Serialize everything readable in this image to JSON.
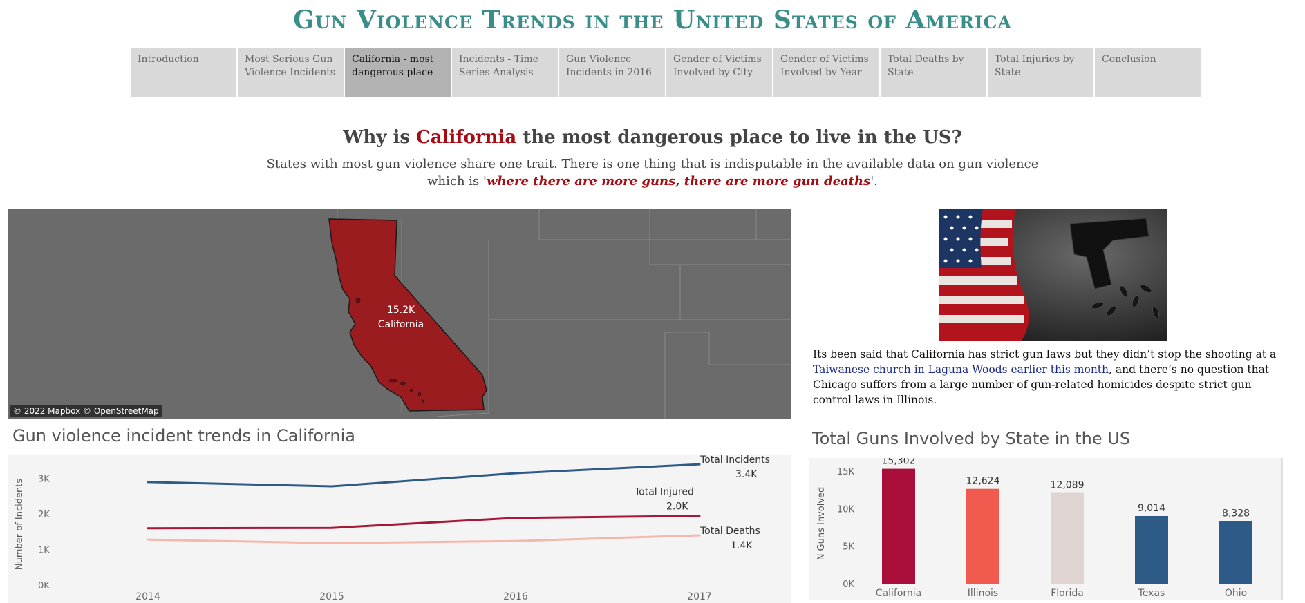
{
  "header": {
    "title": "Gun Violence Trends in the United States of America"
  },
  "tabs": [
    {
      "label": "Introduction",
      "active": false
    },
    {
      "label": "Most Serious Gun Violence Incidents",
      "active": false
    },
    {
      "label": "California - most dangerous place",
      "active": true
    },
    {
      "label": "Incidents - Time Series Analysis",
      "active": false
    },
    {
      "label": "Gun Violence Incidents in 2016",
      "active": false
    },
    {
      "label": "Gender of Victims Involved by City",
      "active": false
    },
    {
      "label": "Gender of Victims Involved by Year",
      "active": false
    },
    {
      "label": "Total Deaths by State",
      "active": false
    },
    {
      "label": "Total Injuries by State",
      "active": false
    },
    {
      "label": "Conclusion",
      "active": false
    }
  ],
  "intro": {
    "question_pre": "Why is ",
    "question_highlight": "California",
    "question_post": " the most dangerous place to live in the US?",
    "subtext_pre": "States with most gun violence share one trait. There is one thing that is indisputable in the available data on gun violence which is '",
    "subtext_quote": "where there are more guns, there are more gun deaths",
    "subtext_post": "'."
  },
  "map": {
    "value_label": "15.2K",
    "state_label": "California",
    "attribution": "© 2022 Mapbox © OpenStreetMap",
    "highlight_color": "#9b1c1f"
  },
  "article": {
    "text_1": "Its been said that California has strict gun laws but they didn’t stop the shooting at a ",
    "link_text": "Taiwanese church in Laguna Woods earlier this month",
    "text_2": ", and there’s no question that Chicago suffers from a large number of gun-related homicides despite strict gun control laws in Illinois."
  },
  "line_chart": {
    "title": "Gun violence incident trends in California"
  },
  "bar_chart": {
    "title": "Total Guns Involved by State in the US"
  },
  "chart_data": [
    {
      "type": "line",
      "title": "Gun violence incident trends in California",
      "ylabel": "Number of Incidents",
      "xlabel": "",
      "x": [
        "2014",
        "2015",
        "2016",
        "2017"
      ],
      "ylim": [
        0,
        3500
      ],
      "y_ticks": [
        "0K",
        "1K",
        "2K",
        "3K"
      ],
      "grid": false,
      "series": [
        {
          "name": "Total Incidents",
          "end_label": "3.4K",
          "values": [
            2900,
            2780,
            3150,
            3400
          ],
          "color": "#2d5a87"
        },
        {
          "name": "Total Injured",
          "end_label": "2.0K",
          "values": [
            1600,
            1610,
            1890,
            1950
          ],
          "color": "#a8173a"
        },
        {
          "name": "Total Deaths",
          "end_label": "1.4K",
          "values": [
            1280,
            1180,
            1240,
            1400
          ],
          "color": "#f6b7ab"
        }
      ]
    },
    {
      "type": "bar",
      "title": "Total Guns Involved by State in the US",
      "ylabel": "N Guns Involved",
      "xlabel": "",
      "categories": [
        "California",
        "Illinois",
        "Florida",
        "Texas",
        "Ohio"
      ],
      "values": [
        15302,
        12624,
        12089,
        9014,
        8328
      ],
      "value_labels": [
        "15,302",
        "12,624",
        "12,089",
        "9,014",
        "8,328"
      ],
      "colors": [
        "#a90f3a",
        "#f05a4f",
        "#e0d4d2",
        "#2d5a87",
        "#2d5a87"
      ],
      "ylim": [
        0,
        16000
      ],
      "y_ticks": [
        "0K",
        "5K",
        "10K",
        "15K"
      ],
      "grid": false
    }
  ]
}
